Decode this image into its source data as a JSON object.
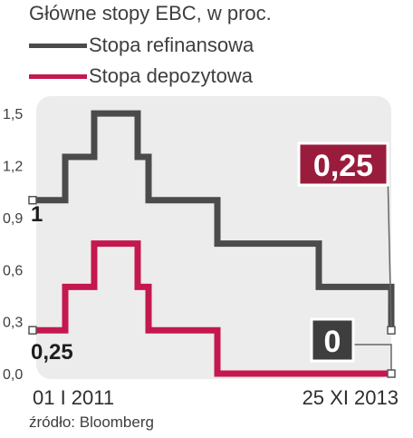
{
  "chart_data": {
    "type": "line",
    "title": "Główne stopy EBC, w proc.",
    "x_labels": [
      "01 I 2011",
      "25 XI 2013"
    ],
    "y_ticks": [
      "0,0",
      "0,3",
      "0,6",
      "0,9",
      "1,2",
      "1,5"
    ],
    "ylim": [
      0,
      1.6
    ],
    "grid": false,
    "legend_position": "top-left",
    "series": [
      {
        "name": "Stopa refinansowa",
        "color": "#4b4b4b",
        "values": [
          1.0,
          1.0,
          1.25,
          1.5,
          1.5,
          1.25,
          1.0,
          1.0,
          0.75,
          0.75,
          0.5,
          0.5,
          0.25
        ]
      },
      {
        "name": "Stopa depozytowa",
        "color": "#c4184f",
        "values": [
          0.25,
          0.25,
          0.5,
          0.75,
          0.75,
          0.5,
          0.25,
          0.25,
          0.0,
          0.0,
          0.0,
          0.0,
          0.0
        ]
      }
    ],
    "start_labels": [
      "1",
      "0,25"
    ],
    "end_labels": [
      "0,25",
      "0"
    ]
  },
  "source": "źródło: Bloomberg"
}
